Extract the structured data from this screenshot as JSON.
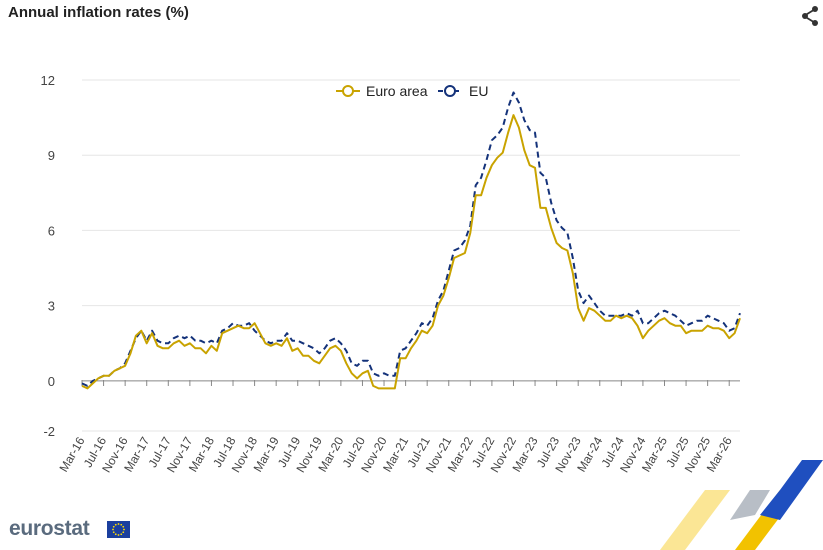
{
  "title": "Annual inflation rates (%)",
  "logo": "eurostat",
  "icons": {
    "share": "share-icon",
    "flag": "eu-flag-icon"
  },
  "colors": {
    "euro_area": "#c9a300",
    "eu": "#14327a",
    "grid": "#e6e6e6",
    "axis": "#555555"
  },
  "chart_data": {
    "type": "line",
    "title": "Annual inflation rates (%)",
    "xlabel": "",
    "ylabel": "",
    "ylim": [
      -2,
      12
    ],
    "yticks": [
      "-2",
      "0",
      "3",
      "6",
      "9",
      "12"
    ],
    "grid": true,
    "legend": "top-center",
    "x_tick_labels": [
      "Mar-16",
      "Jul-16",
      "Nov-16",
      "Mar-17",
      "Jul-17",
      "Nov-17",
      "Mar-18",
      "Jul-18",
      "Nov-18",
      "Mar-19",
      "Jul-19",
      "Nov-19",
      "Mar-20",
      "Jul-20",
      "Nov-20",
      "Mar-21",
      "Jul-21",
      "Nov-21",
      "Mar-22",
      "Jul-22",
      "Nov-22",
      "Mar-23",
      "Jul-23",
      "Nov-23",
      "Mar-24",
      "Jul-24",
      "Nov-24",
      "Mar-25",
      "Jul-25",
      "Nov-25",
      "Mar-26"
    ],
    "series": [
      {
        "name": "Euro area",
        "values": [
          -0.2,
          -0.3,
          -0.1,
          0.1,
          0.2,
          0.2,
          0.4,
          0.5,
          0.6,
          1.1,
          1.8,
          2.0,
          1.5,
          1.9,
          1.4,
          1.3,
          1.3,
          1.5,
          1.6,
          1.4,
          1.5,
          1.3,
          1.3,
          1.1,
          1.4,
          1.2,
          1.9,
          2.0,
          2.1,
          2.2,
          2.1,
          2.1,
          2.3,
          1.9,
          1.5,
          1.4,
          1.5,
          1.4,
          1.7,
          1.2,
          1.3,
          1.0,
          1.0,
          0.8,
          0.7,
          1.0,
          1.3,
          1.4,
          1.2,
          0.7,
          0.3,
          0.1,
          0.3,
          0.4,
          -0.2,
          -0.3,
          -0.3,
          -0.3,
          -0.3,
          0.9,
          0.9,
          1.3,
          1.6,
          2.0,
          1.9,
          2.2,
          3.0,
          3.4,
          4.1,
          4.9,
          5.0,
          5.1,
          5.9,
          7.4,
          7.4,
          8.1,
          8.6,
          8.9,
          9.1,
          9.9,
          10.6,
          10.1,
          9.2,
          8.6,
          8.5,
          6.9,
          6.9,
          6.1,
          5.5,
          5.3,
          5.2,
          4.3,
          2.9,
          2.4,
          2.9,
          2.8,
          2.6,
          2.4,
          2.4,
          2.6,
          2.5,
          2.6,
          2.5,
          2.2,
          1.7,
          2.0,
          2.2,
          2.4,
          2.5,
          2.3,
          2.2,
          2.2,
          1.9,
          2.0,
          2.0,
          2.0,
          2.2,
          2.1,
          2.1,
          2.0,
          1.7,
          1.9,
          2.5
        ]
      },
      {
        "name": "EU",
        "values": [
          -0.1,
          -0.2,
          0.0,
          0.1,
          0.2,
          0.2,
          0.4,
          0.5,
          0.7,
          1.2,
          1.7,
          2.0,
          1.6,
          2.0,
          1.6,
          1.5,
          1.5,
          1.7,
          1.8,
          1.7,
          1.8,
          1.6,
          1.6,
          1.5,
          1.6,
          1.5,
          2.0,
          2.1,
          2.3,
          2.2,
          2.2,
          2.3,
          2.0,
          1.8,
          1.6,
          1.5,
          1.6,
          1.6,
          1.9,
          1.6,
          1.6,
          1.5,
          1.4,
          1.3,
          1.1,
          1.3,
          1.6,
          1.7,
          1.5,
          1.2,
          0.7,
          0.6,
          0.8,
          0.8,
          0.3,
          0.2,
          0.3,
          0.2,
          0.2,
          1.2,
          1.3,
          1.6,
          1.9,
          2.3,
          2.2,
          2.5,
          3.2,
          3.6,
          4.4,
          5.2,
          5.3,
          5.6,
          6.2,
          7.8,
          8.1,
          8.8,
          9.6,
          9.8,
          10.1,
          10.9,
          11.5,
          11.1,
          10.4,
          10.0,
          9.9,
          8.3,
          8.1,
          7.1,
          6.4,
          6.1,
          5.9,
          4.9,
          3.6,
          3.1,
          3.4,
          3.1,
          2.8,
          2.6,
          2.6,
          2.6,
          2.6,
          2.7,
          2.6,
          2.8,
          2.3,
          2.3,
          2.5,
          2.7,
          2.8,
          2.7,
          2.6,
          2.4,
          2.2,
          2.3,
          2.4,
          2.4,
          2.6,
          2.5,
          2.4,
          2.3,
          2.0,
          2.1,
          2.7
        ]
      }
    ]
  }
}
